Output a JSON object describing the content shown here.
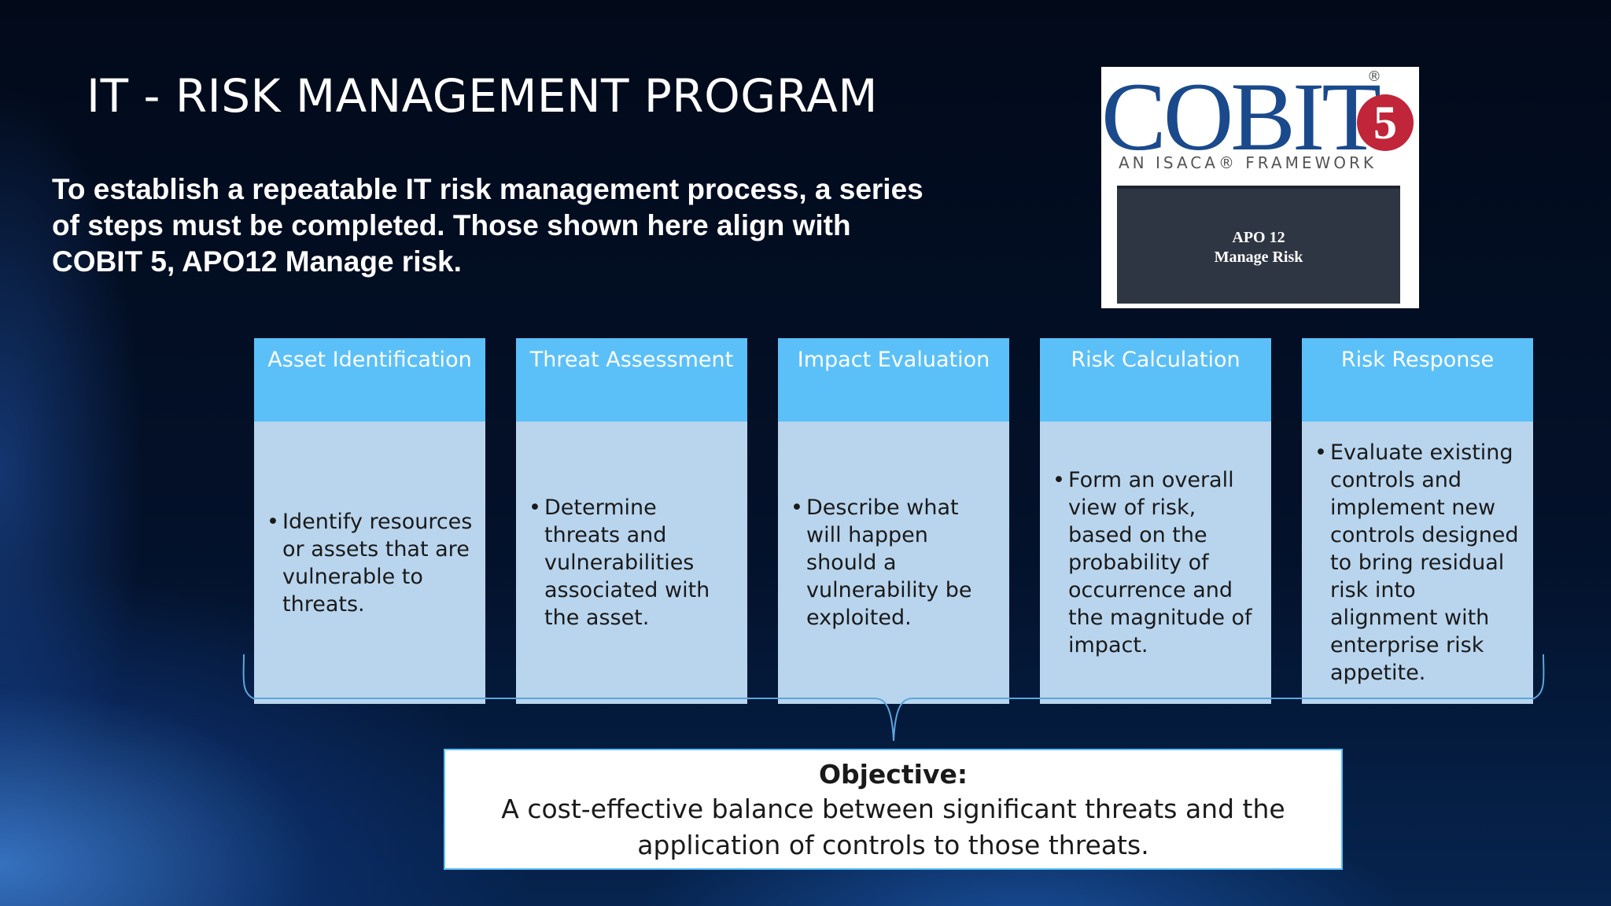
{
  "slide": {
    "title": "IT - RISK MANAGEMENT PROGRAM",
    "intro": "To establish a repeatable IT risk management process, a series of steps must be completed. Those shown here align with COBIT 5, APO12 Manage risk."
  },
  "logo": {
    "word": "COBIT",
    "registered": "®",
    "number": "5",
    "tagline": "AN ISACA® FRAMEWORK",
    "inner_text": "APO 12\nManage Risk"
  },
  "steps": [
    {
      "title": "Asset Identification",
      "text": "Identify resources or assets that are vulnerable to threats."
    },
    {
      "title": "Threat Assessment",
      "text": "Determine threats and vulnerabilities associated with the asset."
    },
    {
      "title": "Impact Evaluation",
      "text": "Describe what will happen should a vulnerability be exploited."
    },
    {
      "title": "Risk Calculation",
      "text": "Form an overall view of risk, based on the probability of occurrence and the magnitude of impact."
    },
    {
      "title": "Risk Response",
      "text": "Evaluate existing controls and implement new controls designed to bring residual risk into alignment with enterprise risk appetite."
    }
  ],
  "objective": {
    "title": "Objective:",
    "text": "A cost-effective balance between significant threats and the application of controls to those threats."
  },
  "colors": {
    "step_header": "#5bc0f8",
    "step_body": "#b9d5ee",
    "logo_blue": "#1a4a8c",
    "logo_red": "#c0253a"
  }
}
